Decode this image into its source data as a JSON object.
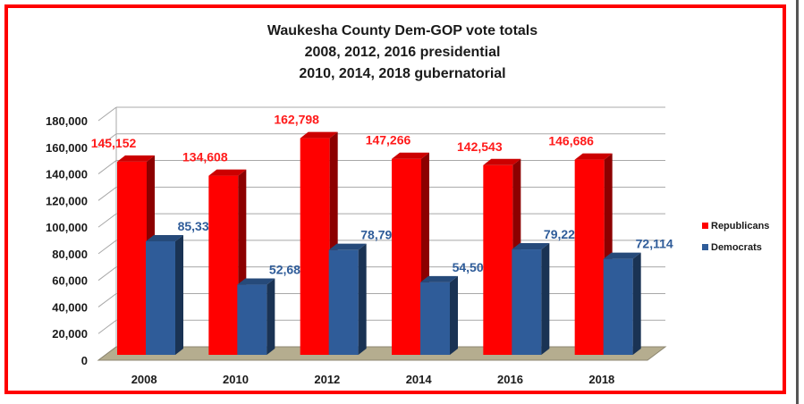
{
  "chart_data": {
    "type": "bar",
    "title": [
      "Waukesha County Dem-GOP vote totals",
      "2008, 2012, 2016 presidential",
      "2010, 2014, 2018 gubernatorial"
    ],
    "categories": [
      "2008",
      "2010",
      "2012",
      "2014",
      "2016",
      "2018"
    ],
    "series": [
      {
        "name": "Republicans",
        "color": "#ff0000",
        "label_color": "#ff1a1a",
        "values": [
          145152,
          134608,
          162798,
          147266,
          142543,
          146686
        ],
        "labels": [
          "145,152",
          "134,608",
          "162,798",
          "147,266",
          "142,543",
          "146,686"
        ]
      },
      {
        "name": "Democrats",
        "color": "#2f5c99",
        "label_color": "#2f5c99",
        "values": [
          85339,
          52684,
          78799,
          54500,
          79224,
          72114
        ],
        "labels": [
          "85,339",
          "52,684",
          "78,799",
          "54,500",
          "79,224",
          "72,114"
        ]
      }
    ],
    "ylim": [
      0,
      180000
    ],
    "yticks": [
      "0",
      "20,000",
      "40,000",
      "60,000",
      "80,000",
      "100,000",
      "120,000",
      "140,000",
      "160,000",
      "180,000"
    ],
    "grid": true,
    "legend_position": "right",
    "xlabel": "",
    "ylabel": ""
  }
}
